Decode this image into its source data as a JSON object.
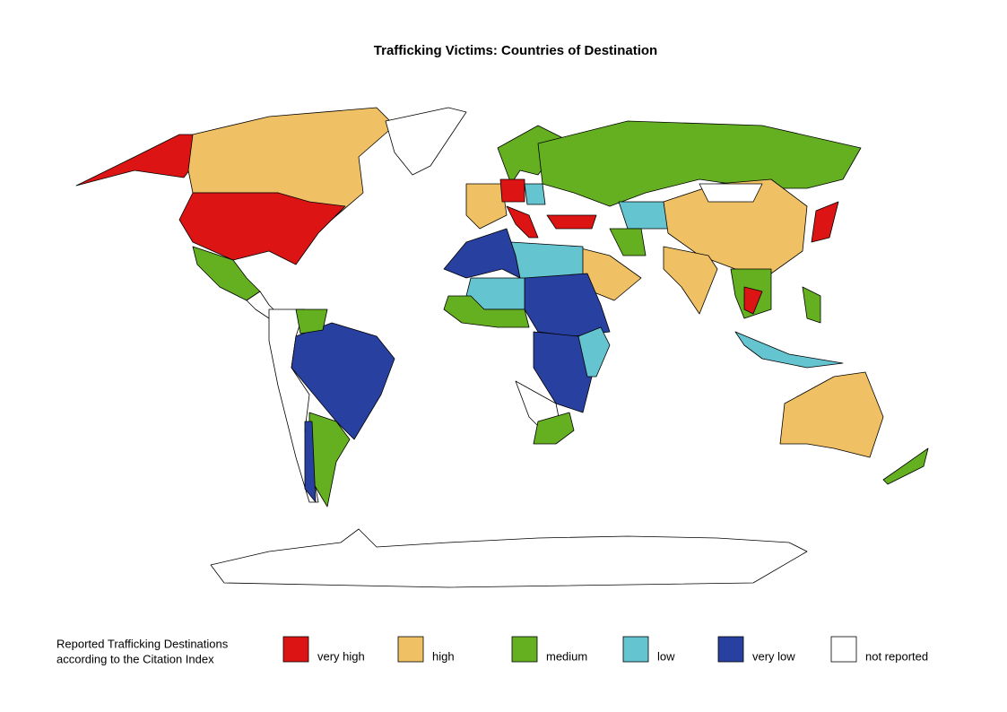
{
  "title": "Trafficking Victims: Countries of Destination",
  "legend": {
    "title": [
      "Reported Trafficking Destinations",
      "according to the Citation Index"
    ],
    "items": [
      {
        "label": "very high",
        "color": "#dc1414"
      },
      {
        "label": "high",
        "color": "#f0c064"
      },
      {
        "label": "medium",
        "color": "#64b020"
      },
      {
        "label": "low",
        "color": "#64c4d0"
      },
      {
        "label": "very low",
        "color": "#2840a0"
      },
      {
        "label": "not reported",
        "color": "#ffffff"
      }
    ]
  }
}
